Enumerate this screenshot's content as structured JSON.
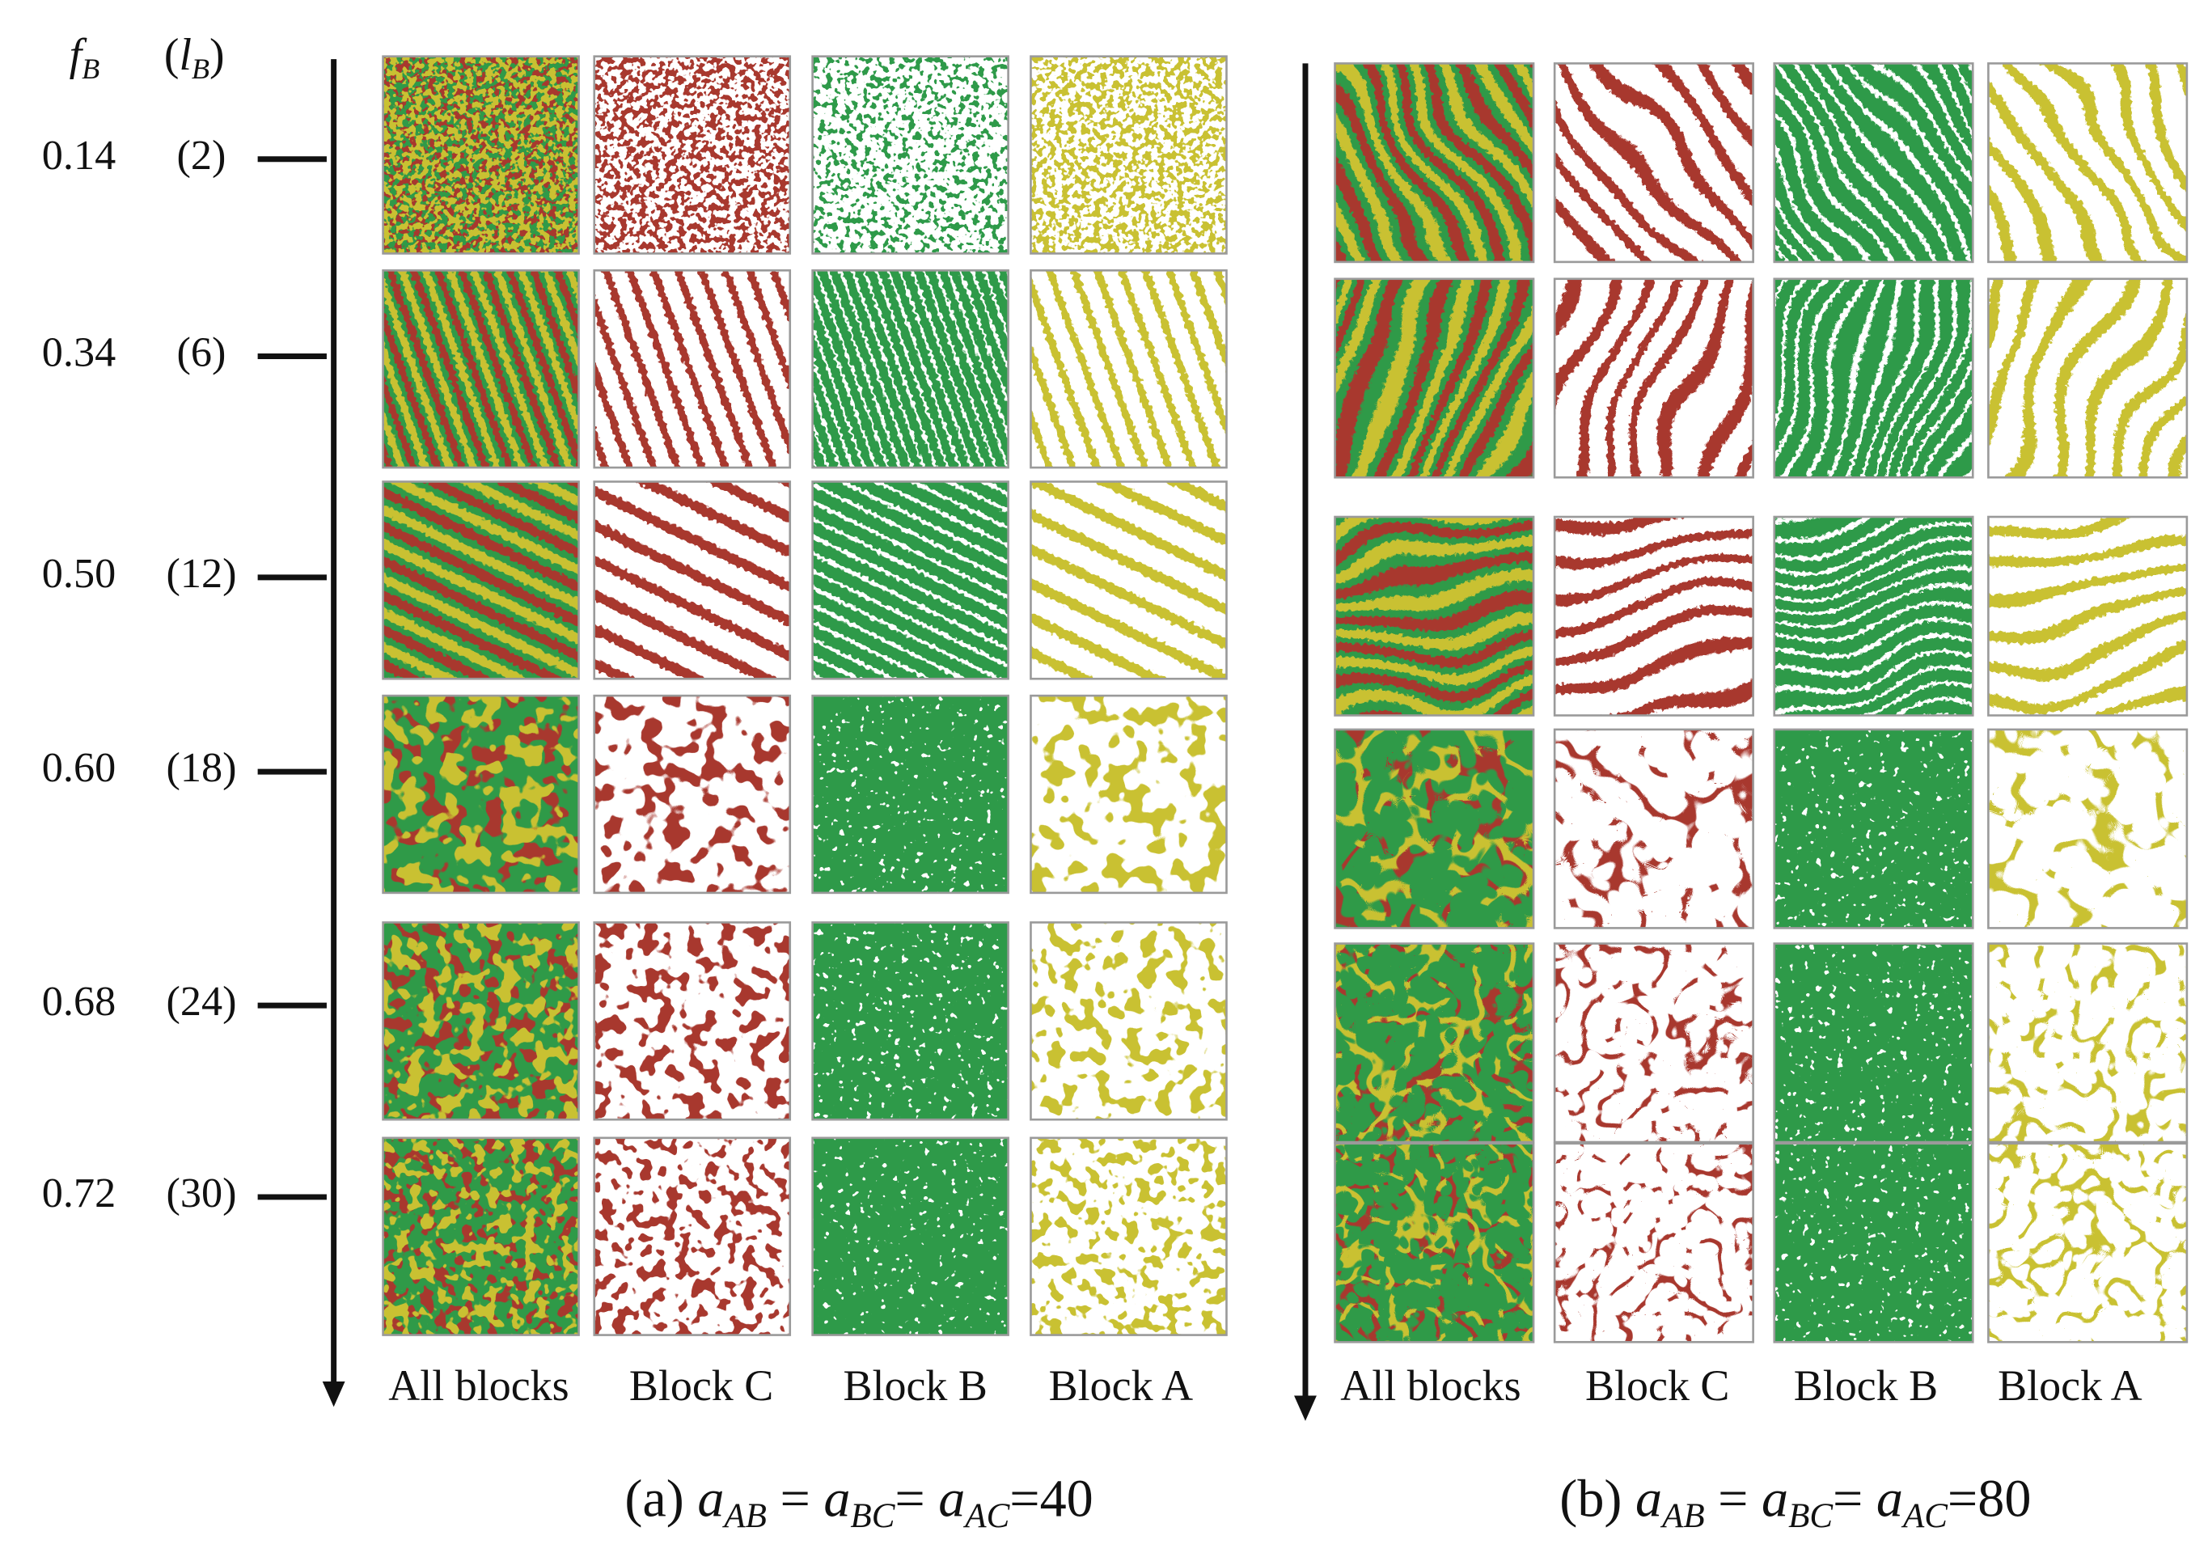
{
  "header": {
    "fraction": [
      {
        "symbol": "f",
        "subscript": "B"
      }
    ],
    "length": [
      {
        "text": "("
      },
      {
        "symbol": "l",
        "subscript": "B"
      },
      {
        "text": ")"
      }
    ]
  },
  "rows": [
    {
      "fraction": "0.14",
      "length": "(2)"
    },
    {
      "fraction": "0.34",
      "length": "(6)"
    },
    {
      "fraction": "0.50",
      "length": "(12)"
    },
    {
      "fraction": "0.60",
      "length": "(18)"
    },
    {
      "fraction": "0.68",
      "length": "(24)"
    },
    {
      "fraction": "0.72",
      "length": "(30)"
    }
  ],
  "panels": [
    {
      "columns": [
        "All blocks",
        "Block C",
        "Block B",
        "Block A"
      ],
      "caption": [
        {
          "text": "(a) "
        },
        {
          "symbol": "a",
          "subscript": "AB"
        },
        {
          "text": " = "
        },
        {
          "symbol": "a",
          "subscript": "BC"
        },
        {
          "text": "= "
        },
        {
          "symbol": "a",
          "subscript": "AC"
        },
        {
          "text": "=40"
        }
      ]
    },
    {
      "columns": [
        "All blocks",
        "Block C",
        "Block B",
        "Block A"
      ],
      "caption": [
        {
          "text": "(b) "
        },
        {
          "symbol": "a",
          "subscript": "AB"
        },
        {
          "text": " = "
        },
        {
          "symbol": "a",
          "subscript": "BC"
        },
        {
          "text": "= "
        },
        {
          "symbol": "a",
          "subscript": "AC"
        },
        {
          "text": "=80"
        }
      ]
    }
  ]
}
